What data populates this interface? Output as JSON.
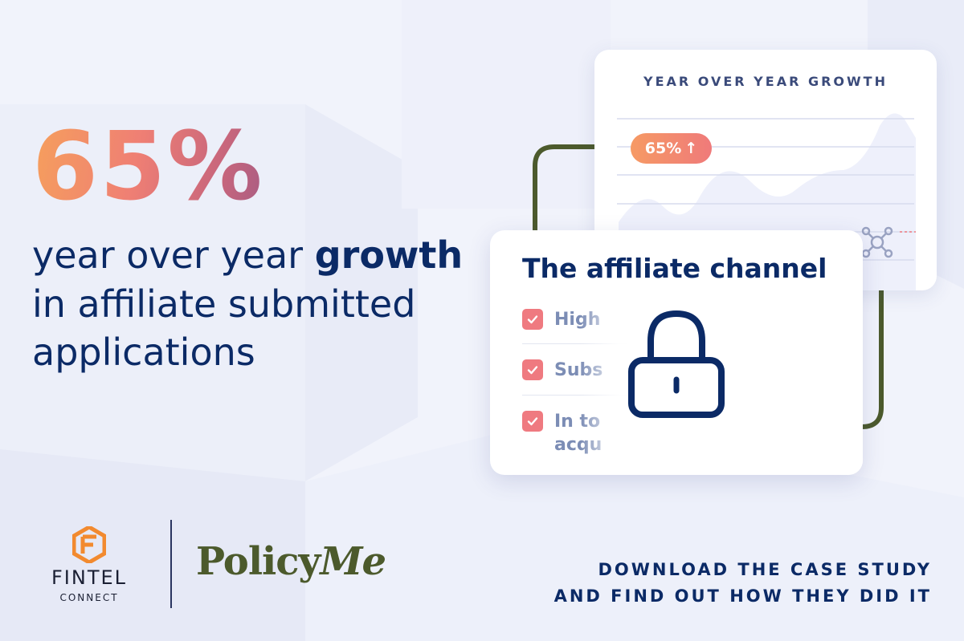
{
  "headline": {
    "stat": "65%",
    "line_prefix": "year over year ",
    "line_strong": "growth",
    "line_rest_1": "in affiliate submitted",
    "line_rest_2": "applications"
  },
  "growth_card": {
    "title": "YEAR OVER YEAR GROWTH",
    "badge_value": "65%",
    "badge_arrow": "↑"
  },
  "affiliate_card": {
    "title": "The affiliate channel",
    "items": [
      {
        "text": "High"
      },
      {
        "text": "Subs"
      },
      {
        "text_line1": "In to",
        "text_line2": "acqu"
      }
    ]
  },
  "footer": {
    "fintel_name": "FINTEL",
    "fintel_sub": "CONNECT",
    "policyme_main": "Policy",
    "policyme_me": "Me",
    "cta_line1": "DOWNLOAD THE CASE STUDY",
    "cta_line2": "AND FIND OUT HOW THEY DID IT"
  },
  "colors": {
    "navy": "#0b2a66",
    "coral": "#ef7a80",
    "orange": "#f69a64",
    "olive": "#4c5a2c",
    "background": "#f1f3fb"
  },
  "icons": [
    "check-icon",
    "lock-icon",
    "network-node-icon",
    "fintel-logo-icon",
    "arrow-up-icon"
  ]
}
